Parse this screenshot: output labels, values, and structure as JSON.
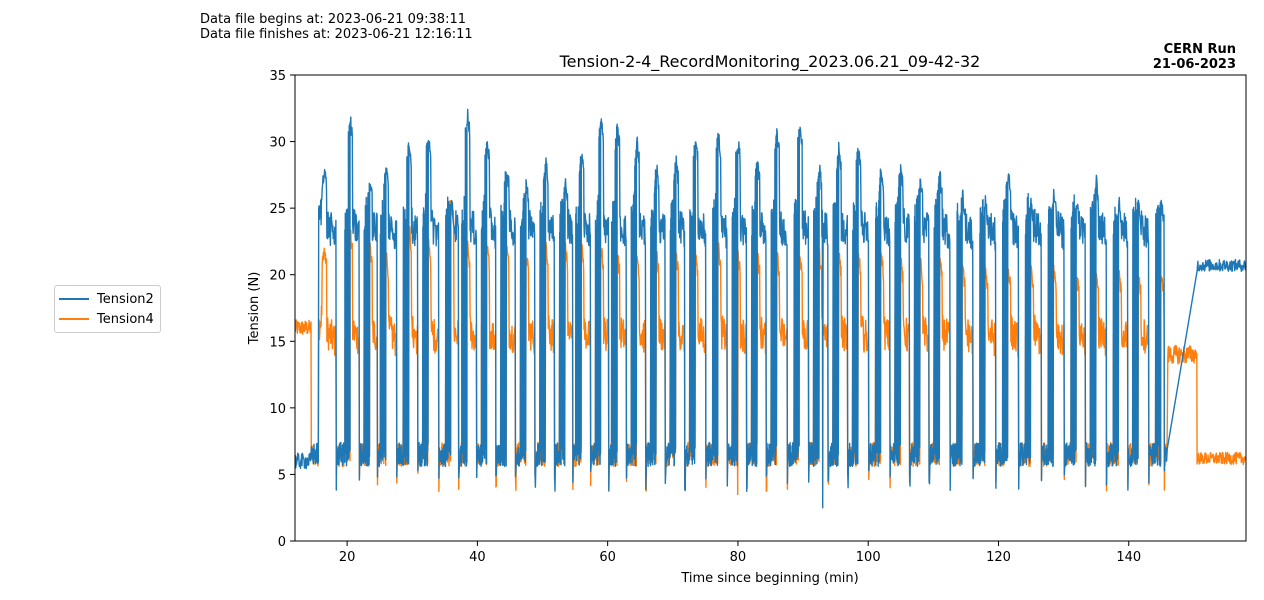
{
  "header": {
    "file_begins": "Data file begins at: 2023-06-21 09:38:11",
    "file_finishes": "Data file finishes at: 2023-06-21 12:16:11",
    "run_line1": "CERN Run",
    "run_line2": "21-06-2023"
  },
  "chart_data": {
    "type": "line",
    "title": "Tension-2-4_RecordMonitoring_2023.06.21_09-42-32",
    "xlabel": "Time since beginning (min)",
    "ylabel": "Tension (N)",
    "xlim": [
      12,
      158
    ],
    "ylim": [
      0,
      35
    ],
    "x_ticks": [
      20,
      40,
      60,
      80,
      100,
      120,
      140
    ],
    "y_ticks": [
      0,
      5,
      10,
      15,
      20,
      25,
      30,
      35
    ],
    "grid": false,
    "legend_position": "left-outside",
    "colors": {
      "Tension2": "#1f77b4",
      "Tension4": "#ff7f0e"
    },
    "cycle_peak_times_min": [
      16.5,
      20.5,
      23.5,
      26,
      29.5,
      32.5,
      36,
      38.5,
      41.5,
      44.5,
      47.5,
      50.5,
      53.5,
      56,
      59,
      61.5,
      64.5,
      67.5,
      70.5,
      73.5,
      77,
      80,
      83,
      86,
      89.5,
      92.5,
      95.5,
      98.5,
      102,
      105,
      108,
      111,
      114.5,
      118,
      121.5,
      125,
      128.5,
      132,
      135,
      138.5,
      141.5,
      145
    ],
    "series": [
      {
        "name": "Tension2",
        "low_level": 6.5,
        "high_level_pre_cycles": null,
        "peaks": [
          28,
          31.5,
          27,
          28,
          30,
          30.5,
          25.5,
          32,
          30,
          28,
          27,
          28.5,
          27,
          29,
          31.5,
          31,
          30,
          28,
          28.5,
          30,
          30.5,
          30,
          28.5,
          30.5,
          31,
          28,
          29.5,
          29.5,
          28,
          28,
          27,
          27.5,
          26,
          25.5,
          27.5,
          25.5,
          26,
          25.5,
          27,
          25.5,
          25.5,
          25.5
        ],
        "plateau": 24,
        "segments": [
          {
            "x_start": 12,
            "x_end": 14.5,
            "level": 6
          },
          {
            "x_start": 150.5,
            "x_end": 158,
            "level": 20.7
          }
        ],
        "minimum": {
          "x": 93,
          "y": 2.5
        }
      },
      {
        "name": "Tension4",
        "low_level": 6.5,
        "peaks": [
          22,
          23,
          22,
          21.5,
          23.5,
          22.5,
          25.5,
          22,
          22,
          22,
          21.5,
          22,
          22,
          22,
          22,
          21.5,
          21.5,
          21.5,
          21.5,
          21.5,
          22,
          21.5,
          21.5,
          21.5,
          21.5,
          21.5,
          21.5,
          21.5,
          21.5,
          21,
          21,
          21,
          20.5,
          20.5,
          20.5,
          20.5,
          20.5,
          20,
          20,
          20,
          20,
          20
        ],
        "plateau": 16,
        "segments": [
          {
            "x_start": 12,
            "x_end": 14.5,
            "level": 16
          },
          {
            "x_start": 146,
            "x_end": 150.5,
            "level": 14
          },
          {
            "x_start": 150.5,
            "x_end": 158,
            "level": 6.2
          }
        ],
        "minimum": {
          "x": 80,
          "y": 3.5
        }
      }
    ]
  }
}
